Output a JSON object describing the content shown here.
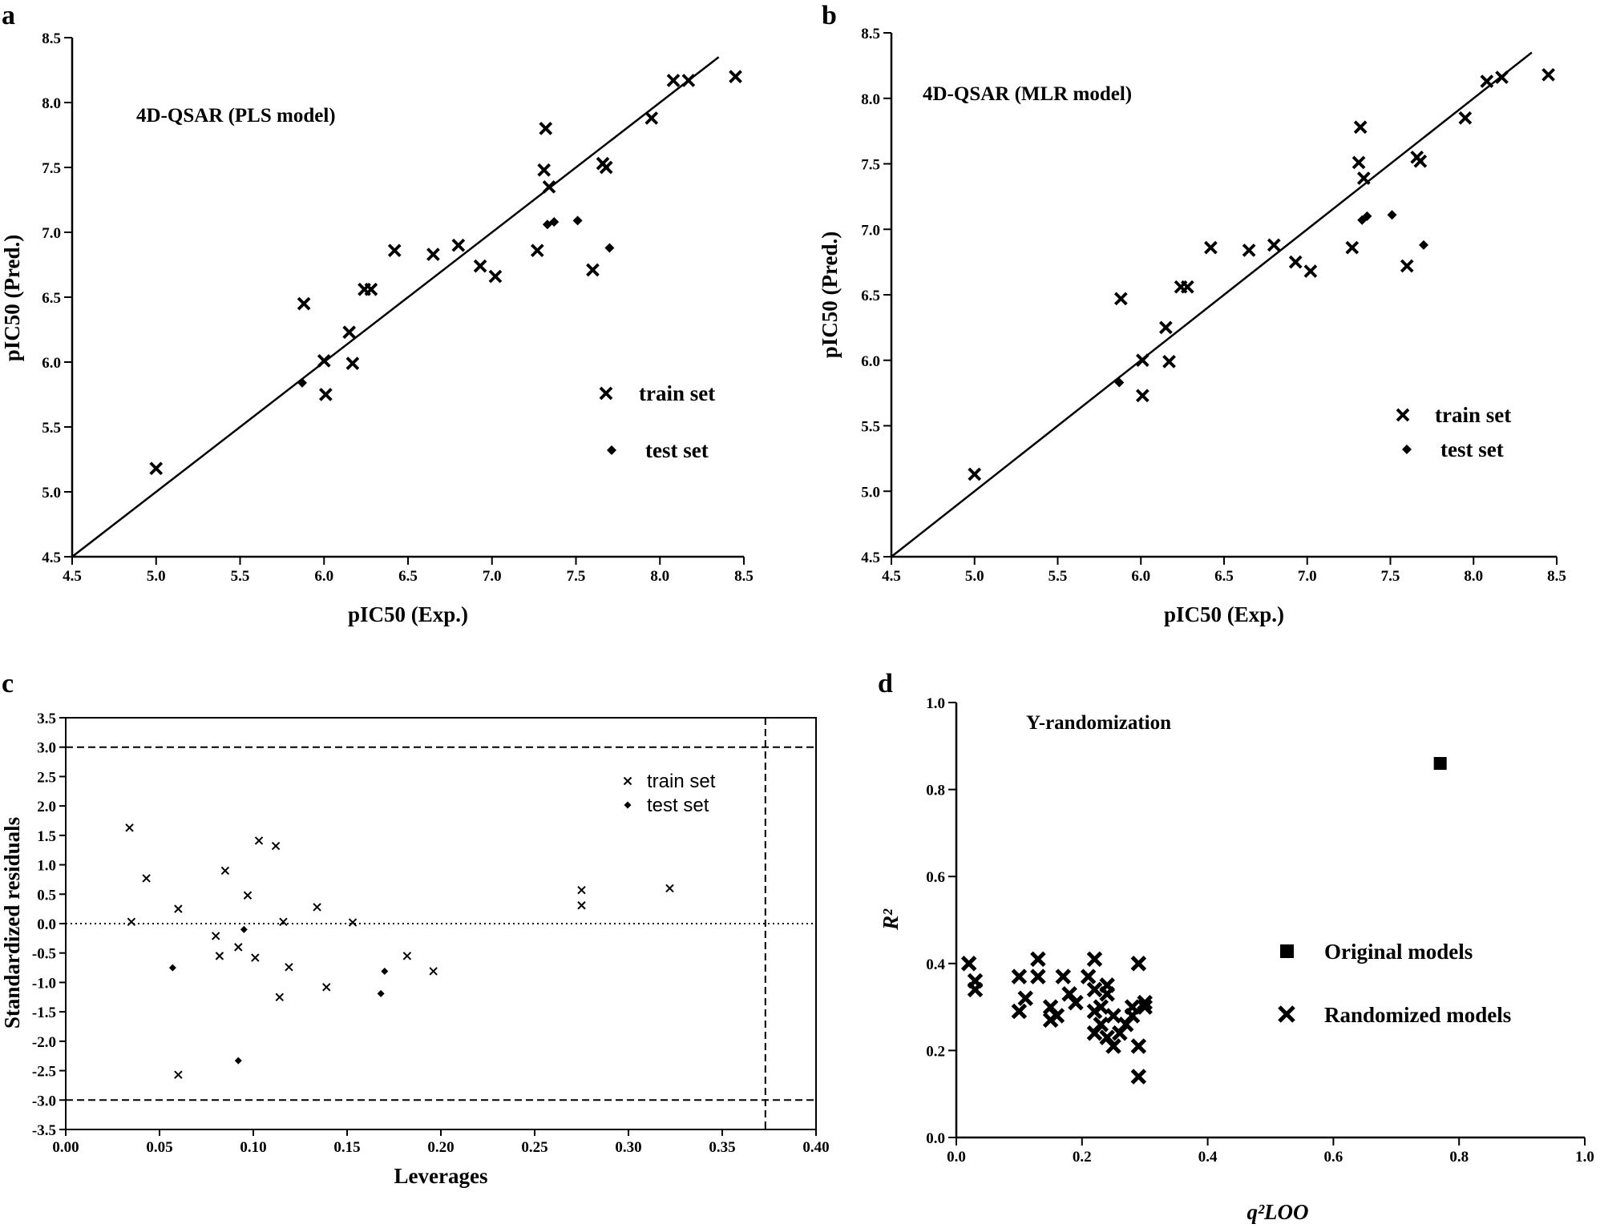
{
  "chart_data": [
    {
      "panel": "a",
      "type": "scatter",
      "annotation": "4D-QSAR (PLS model)",
      "xlabel": "pIC50 (Exp.)",
      "ylabel": "pIC50 (Pred.)",
      "xlim": [
        4.5,
        8.5
      ],
      "ylim": [
        4.5,
        8.5
      ],
      "xticks": [
        "4.5",
        "5.0",
        "5.5",
        "6.0",
        "6.5",
        "7.0",
        "7.5",
        "8.0",
        "8.5"
      ],
      "yticks": [
        "4.5",
        "5.0",
        "5.5",
        "6.0",
        "6.5",
        "7.0",
        "7.5",
        "8.0",
        "8.5"
      ],
      "fit_line": [
        [
          4.5,
          4.5
        ],
        [
          8.35,
          8.35
        ]
      ],
      "legend": {
        "train": "train set",
        "test": "test set"
      },
      "train": [
        [
          5.0,
          5.18
        ],
        [
          5.88,
          6.45
        ],
        [
          6.0,
          6.01
        ],
        [
          6.01,
          5.75
        ],
        [
          6.15,
          6.23
        ],
        [
          6.17,
          5.99
        ],
        [
          6.24,
          6.56
        ],
        [
          6.28,
          6.56
        ],
        [
          6.42,
          6.86
        ],
        [
          6.65,
          6.83
        ],
        [
          6.8,
          6.9
        ],
        [
          6.93,
          6.74
        ],
        [
          7.02,
          6.66
        ],
        [
          7.27,
          6.86
        ],
        [
          7.31,
          7.48
        ],
        [
          7.32,
          7.8
        ],
        [
          7.34,
          7.35
        ],
        [
          7.6,
          6.71
        ],
        [
          7.66,
          7.53
        ],
        [
          7.68,
          7.5
        ],
        [
          7.95,
          7.88
        ],
        [
          8.08,
          8.17
        ],
        [
          8.17,
          8.17
        ],
        [
          8.45,
          8.2
        ]
      ],
      "test": [
        [
          5.87,
          5.84
        ],
        [
          7.33,
          7.06
        ],
        [
          7.37,
          7.08
        ],
        [
          7.51,
          7.09
        ],
        [
          7.7,
          6.88
        ]
      ]
    },
    {
      "panel": "b",
      "type": "scatter",
      "annotation": "4D-QSAR (MLR model)",
      "xlabel": "pIC50 (Exp.)",
      "ylabel": "pIC50 (Pred.)",
      "xlim": [
        4.5,
        8.5
      ],
      "ylim": [
        4.5,
        8.5
      ],
      "xticks": [
        "4.5",
        "5.0",
        "5.5",
        "6.0",
        "6.5",
        "7.0",
        "7.5",
        "8.0",
        "8.5"
      ],
      "yticks": [
        "4.5",
        "5.0",
        "5.5",
        "6.0",
        "6.5",
        "7.0",
        "7.5",
        "8.0",
        "8.5"
      ],
      "fit_line": [
        [
          4.5,
          4.5
        ],
        [
          8.35,
          8.35
        ]
      ],
      "legend": {
        "train": "train set",
        "test": "test set"
      },
      "train": [
        [
          5.0,
          5.13
        ],
        [
          5.88,
          6.47
        ],
        [
          6.01,
          6.0
        ],
        [
          6.01,
          5.73
        ],
        [
          6.15,
          6.25
        ],
        [
          6.17,
          5.99
        ],
        [
          6.24,
          6.56
        ],
        [
          6.28,
          6.56
        ],
        [
          6.42,
          6.86
        ],
        [
          6.65,
          6.84
        ],
        [
          6.8,
          6.88
        ],
        [
          6.93,
          6.75
        ],
        [
          7.02,
          6.68
        ],
        [
          7.27,
          6.86
        ],
        [
          7.31,
          7.51
        ],
        [
          7.32,
          7.78
        ],
        [
          7.34,
          7.39
        ],
        [
          7.6,
          6.72
        ],
        [
          7.66,
          7.55
        ],
        [
          7.68,
          7.52
        ],
        [
          7.95,
          7.85
        ],
        [
          8.08,
          8.13
        ],
        [
          8.17,
          8.16
        ],
        [
          8.45,
          8.18
        ]
      ],
      "test": [
        [
          5.87,
          5.83
        ],
        [
          7.33,
          7.07
        ],
        [
          7.36,
          7.1
        ],
        [
          7.51,
          7.11
        ],
        [
          7.7,
          6.88
        ]
      ]
    },
    {
      "panel": "c",
      "type": "scatter",
      "xlabel": "Leverages",
      "ylabel": "Standardized residuals",
      "xlim": [
        0.0,
        0.4
      ],
      "ylim": [
        -3.5,
        3.5
      ],
      "xticks": [
        "0.00",
        "0.05",
        "0.10",
        "0.15",
        "0.20",
        "0.25",
        "0.30",
        "0.35",
        "0.40"
      ],
      "yticks": [
        "-3.5",
        "-3.0",
        "-2.5",
        "-2.0",
        "-1.5",
        "-1.0",
        "-0.5",
        "0.0",
        "0.5",
        "1.0",
        "1.5",
        "2.0",
        "2.5",
        "3.0",
        "3.5"
      ],
      "h_lines": [
        3.0,
        -3.0
      ],
      "zero_line": 0.0,
      "v_line": 0.373,
      "legend": {
        "train": "train set",
        "test": "test set"
      },
      "train": [
        [
          0.034,
          1.63
        ],
        [
          0.035,
          0.03
        ],
        [
          0.043,
          0.77
        ],
        [
          0.06,
          0.25
        ],
        [
          0.06,
          -2.57
        ],
        [
          0.08,
          -0.21
        ],
        [
          0.082,
          -0.55
        ],
        [
          0.085,
          0.9
        ],
        [
          0.092,
          -0.4
        ],
        [
          0.097,
          0.48
        ],
        [
          0.101,
          -0.58
        ],
        [
          0.103,
          1.41
        ],
        [
          0.112,
          1.32
        ],
        [
          0.114,
          -1.25
        ],
        [
          0.116,
          0.03
        ],
        [
          0.119,
          -0.74
        ],
        [
          0.134,
          0.28
        ],
        [
          0.139,
          -1.08
        ],
        [
          0.153,
          0.02
        ],
        [
          0.182,
          -0.55
        ],
        [
          0.196,
          -0.81
        ],
        [
          0.275,
          0.57
        ],
        [
          0.275,
          0.31
        ],
        [
          0.322,
          0.6
        ]
      ],
      "test": [
        [
          0.057,
          -0.75
        ],
        [
          0.092,
          -2.33
        ],
        [
          0.095,
          -0.1
        ],
        [
          0.168,
          -1.19
        ],
        [
          0.17,
          -0.81
        ]
      ]
    },
    {
      "panel": "d",
      "type": "scatter",
      "annotation": "Y-randomization",
      "xlabel": "q²LOO",
      "ylabel": "R²",
      "xlim": [
        0.0,
        1.0
      ],
      "ylim": [
        0.0,
        1.0
      ],
      "xticks": [
        "0.0",
        "0.2",
        "0.4",
        "0.6",
        "0.8",
        "1.0"
      ],
      "yticks": [
        "0.0",
        "0.2",
        "0.4",
        "0.6",
        "0.8",
        "1.0"
      ],
      "legend": {
        "original": "Original models",
        "randomized": "Randomized models"
      },
      "original": [
        [
          0.77,
          0.86
        ]
      ],
      "randomized": [
        [
          0.02,
          0.4
        ],
        [
          0.03,
          0.36
        ],
        [
          0.03,
          0.34
        ],
        [
          0.1,
          0.37
        ],
        [
          0.1,
          0.29
        ],
        [
          0.11,
          0.32
        ],
        [
          0.13,
          0.41
        ],
        [
          0.13,
          0.37
        ],
        [
          0.15,
          0.3
        ],
        [
          0.15,
          0.27
        ],
        [
          0.16,
          0.28
        ],
        [
          0.17,
          0.37
        ],
        [
          0.18,
          0.33
        ],
        [
          0.19,
          0.31
        ],
        [
          0.21,
          0.37
        ],
        [
          0.22,
          0.41
        ],
        [
          0.22,
          0.34
        ],
        [
          0.22,
          0.29
        ],
        [
          0.22,
          0.24
        ],
        [
          0.23,
          0.3
        ],
        [
          0.23,
          0.26
        ],
        [
          0.24,
          0.35
        ],
        [
          0.24,
          0.33
        ],
        [
          0.24,
          0.23
        ],
        [
          0.25,
          0.28
        ],
        [
          0.25,
          0.21
        ],
        [
          0.26,
          0.24
        ],
        [
          0.27,
          0.26
        ],
        [
          0.28,
          0.3
        ],
        [
          0.28,
          0.28
        ],
        [
          0.29,
          0.4
        ],
        [
          0.29,
          0.21
        ],
        [
          0.29,
          0.14
        ],
        [
          0.3,
          0.31
        ],
        [
          0.3,
          0.3
        ]
      ]
    }
  ]
}
